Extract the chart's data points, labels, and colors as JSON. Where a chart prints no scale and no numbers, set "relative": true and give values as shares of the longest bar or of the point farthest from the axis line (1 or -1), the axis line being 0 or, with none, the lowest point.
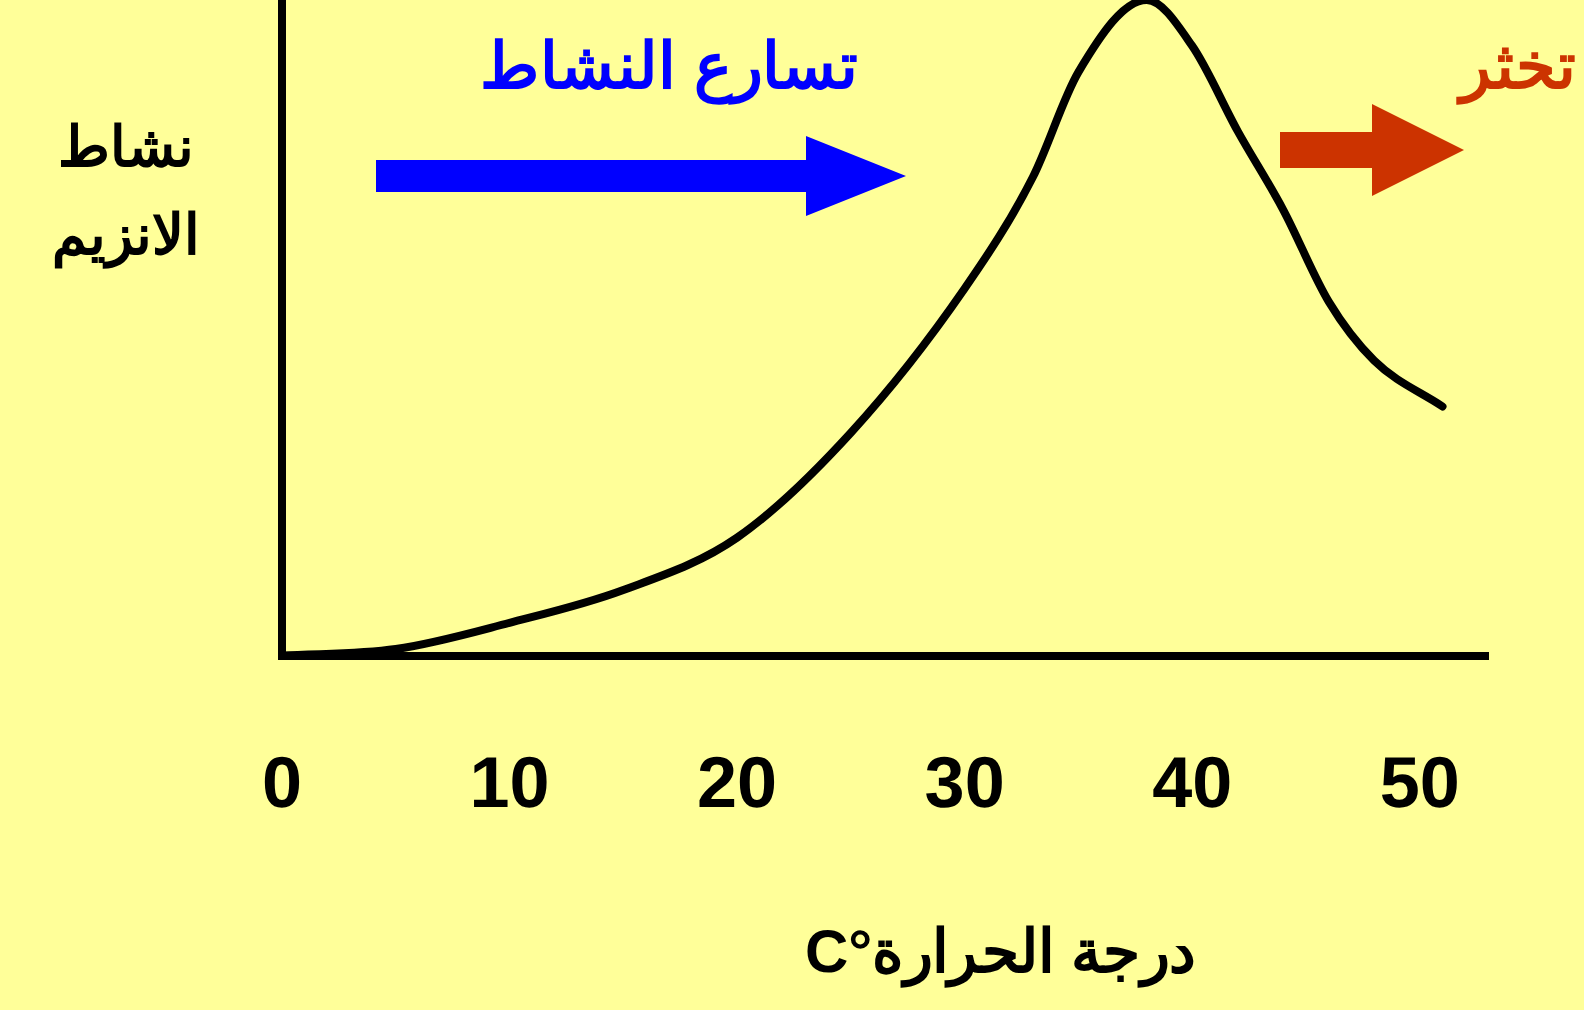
{
  "chart_data": {
    "type": "line",
    "relative": true,
    "xlabel": "درجة الحرارة°C",
    "ylabel": "نشاط الانزيم",
    "annotations": [
      "تسارع النشاط",
      "تخثر"
    ],
    "x": [
      0,
      5,
      10,
      15,
      20,
      25,
      30,
      33,
      35,
      38,
      40,
      42,
      44,
      46,
      48,
      51
    ],
    "series": [
      {
        "color": "#000000",
        "values": [
          0,
          0.01,
          0.05,
          0.1,
          0.18,
          0.34,
          0.56,
          0.73,
          0.89,
          1,
          0.93,
          0.8,
          0.68,
          0.54,
          0.45,
          0.38
        ]
      }
    ],
    "xlim": [
      0,
      53
    ],
    "xticks": [
      0,
      10,
      20,
      30,
      40,
      50
    ],
    "grid": false,
    "legend": false,
    "marker": "none",
    "line_style": "solid"
  }
}
